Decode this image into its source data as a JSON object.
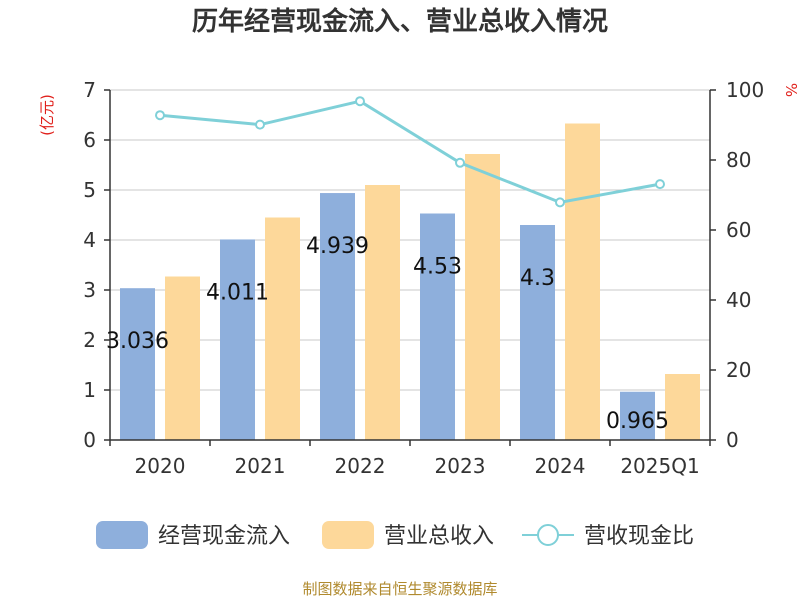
{
  "chart_data": {
    "type": "bar",
    "title": "历年经营现金流入、营业总收入情况",
    "categories": [
      "2020",
      "2021",
      "2022",
      "2023",
      "2024",
      "2025Q1"
    ],
    "y_left": {
      "unit": "(亿元)",
      "ylim": [
        0,
        7
      ],
      "ticks": [
        0,
        1,
        2,
        3,
        4,
        5,
        6,
        7
      ]
    },
    "y_right": {
      "unit": "%",
      "ylim": [
        0,
        100
      ],
      "ticks": [
        0,
        20,
        40,
        60,
        80,
        100
      ]
    },
    "series": [
      {
        "name": "经营现金流入",
        "kind": "bar",
        "axis": "left",
        "color": "#8eafdc",
        "values": [
          3.036,
          4.011,
          4.939,
          4.53,
          4.3,
          0.965
        ],
        "labels": [
          "3.036",
          "4.011",
          "4.939",
          "4.53",
          "4.3",
          "0.965"
        ]
      },
      {
        "name": "营业总收入",
        "kind": "bar",
        "axis": "left",
        "color": "#fdd89a",
        "values": [
          3.27,
          4.45,
          5.1,
          5.72,
          6.33,
          1.32
        ]
      },
      {
        "name": "营收现金比",
        "kind": "line",
        "axis": "right",
        "color": "#7fd0d8",
        "values": [
          92.8,
          90.1,
          96.8,
          79.2,
          67.9,
          73.1
        ]
      }
    ],
    "grid": true,
    "legend": "bottom",
    "source": "制图数据来自恒生聚源数据库"
  }
}
